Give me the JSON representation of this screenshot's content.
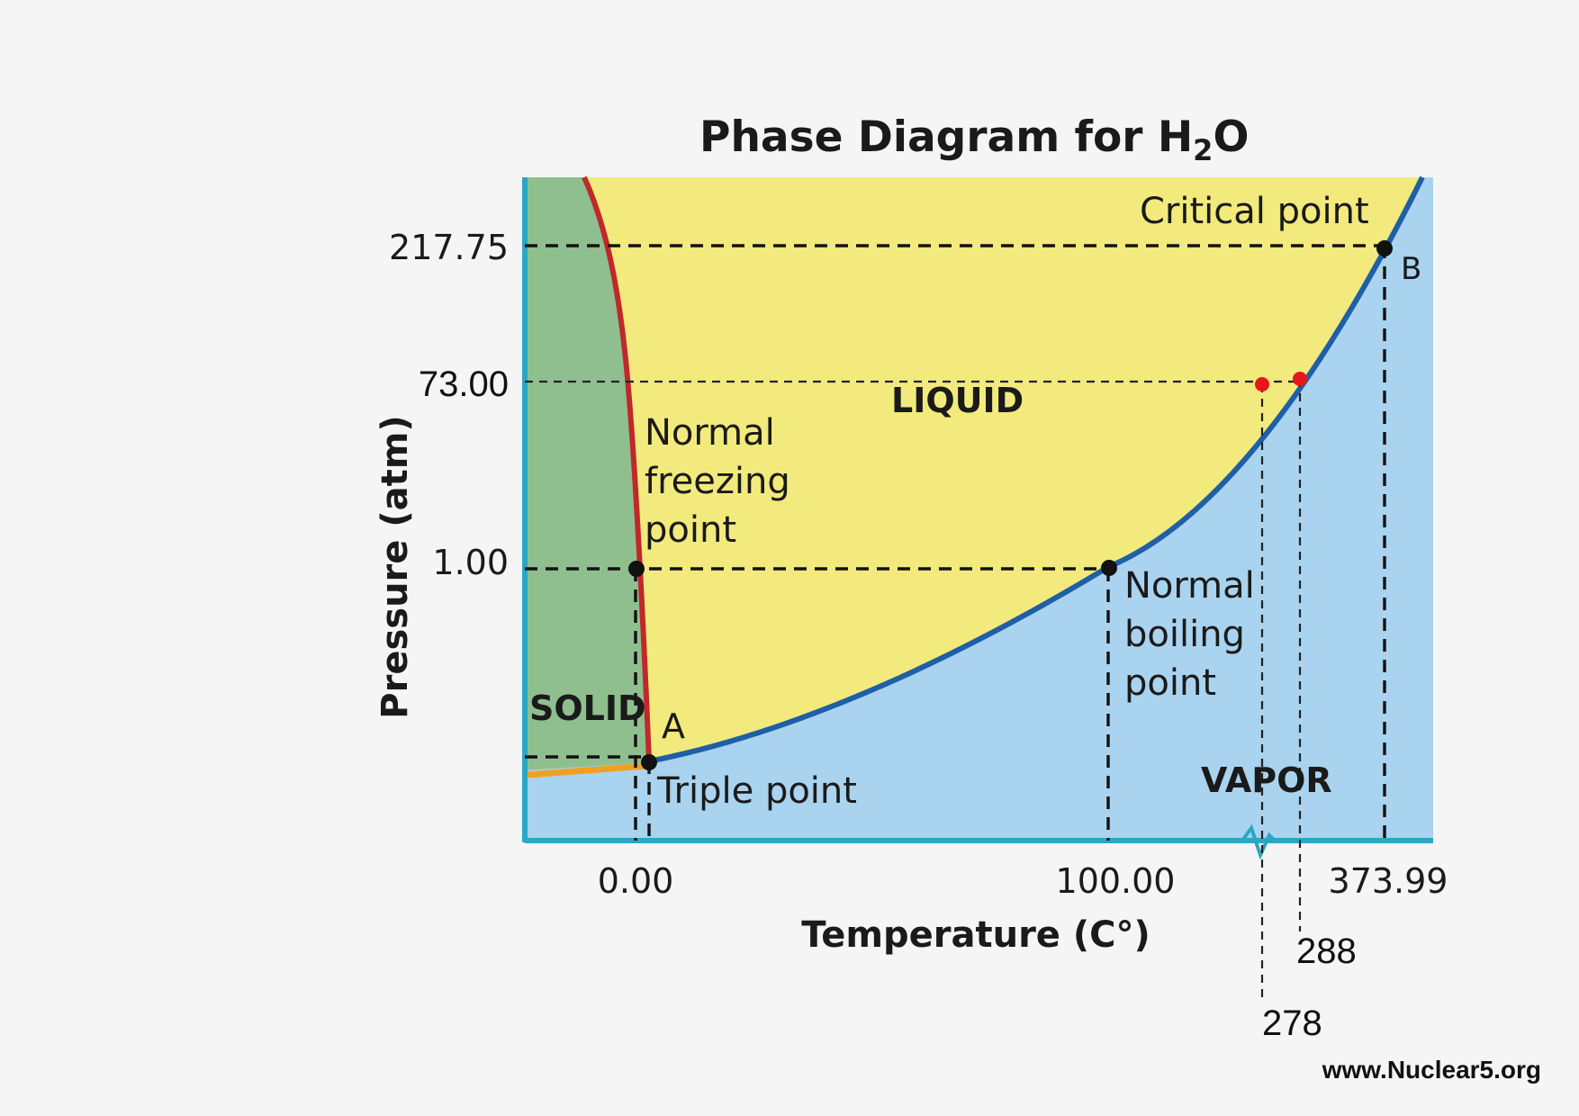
{
  "title": {
    "main": "Phase Diagram for H",
    "subscript": "2",
    "suffix": "O"
  },
  "axes": {
    "x_label": "Temperature (C°)",
    "y_label": "Pressure (atm)",
    "x_ticks": [
      "0.00",
      "100.00",
      "373.99"
    ],
    "y_ticks": [
      "217.75",
      "73.00",
      "1.00"
    ]
  },
  "regions": {
    "solid": "SOLID",
    "liquid": "LIQUID",
    "vapor": "VAPOR"
  },
  "labels": {
    "critical_point": "Critical point",
    "point_b": "B",
    "point_a": "A",
    "triple_point": "Triple point",
    "freezing": [
      "Normal",
      "freezing",
      "point"
    ],
    "boiling": [
      "Normal",
      "boiling",
      "point"
    ]
  },
  "annotations": {
    "red_point_1": "278",
    "red_point_2": "288"
  },
  "watermark": "www.Nuclear5.org",
  "colors": {
    "solid": "#8fbf8f",
    "liquid": "#f2ea7c",
    "vapor": "#a9d3ef",
    "boiling_curve": "#1f5fa8",
    "melting_curve": "#c0282a",
    "axis": "#2aa7c4",
    "highlight": "#e8161a",
    "sublimation": "#f0a020"
  }
}
